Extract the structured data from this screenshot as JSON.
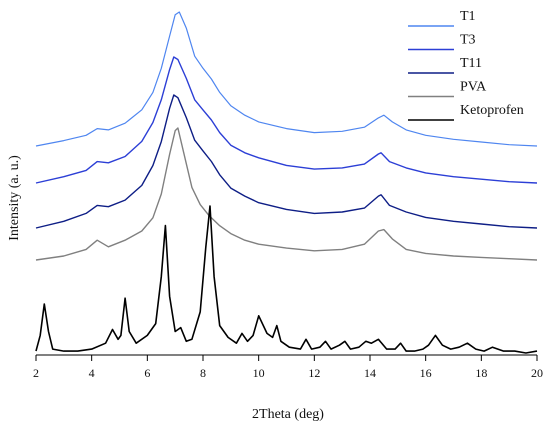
{
  "chart_data": {
    "type": "line",
    "xlabel": "2Theta (deg)",
    "ylabel": "Intensity (a. u.)",
    "xlim": [
      2,
      20
    ],
    "x_ticks": [
      "2",
      "4",
      "6",
      "8",
      "10",
      "12",
      "14",
      "16",
      "18",
      "20"
    ],
    "y_ticks_shown": false,
    "grid": false,
    "legend_position": "top-right",
    "series": [
      {
        "name": "T1",
        "color": "#4f86f0",
        "x": [
          2.0,
          3.0,
          3.8,
          4.2,
          4.6,
          5.2,
          5.8,
          6.2,
          6.5,
          6.8,
          7.0,
          7.15,
          7.4,
          7.7,
          8.0,
          8.3,
          8.6,
          9.0,
          9.5,
          10.0,
          11.0,
          12.0,
          13.0,
          13.8,
          14.3,
          14.5,
          14.8,
          15.3,
          16.0,
          17.0,
          18.0,
          19.0,
          20.0
        ],
        "y": [
          0.0,
          0.04,
          0.08,
          0.13,
          0.12,
          0.17,
          0.27,
          0.4,
          0.58,
          0.82,
          0.98,
          1.0,
          0.88,
          0.67,
          0.58,
          0.5,
          0.4,
          0.3,
          0.23,
          0.18,
          0.13,
          0.1,
          0.11,
          0.14,
          0.21,
          0.23,
          0.18,
          0.12,
          0.08,
          0.05,
          0.03,
          0.01,
          0.0
        ]
      },
      {
        "name": "T3",
        "color": "#2c3fd6",
        "x": [
          2.0,
          3.0,
          3.8,
          4.2,
          4.6,
          5.2,
          5.8,
          6.2,
          6.5,
          6.8,
          6.95,
          7.1,
          7.4,
          7.7,
          8.0,
          8.3,
          8.6,
          9.0,
          9.5,
          10.0,
          11.0,
          12.0,
          13.0,
          13.8,
          14.3,
          14.4,
          14.7,
          15.3,
          16.0,
          17.0,
          18.0,
          19.0,
          20.0
        ],
        "y": [
          0.0,
          0.05,
          0.1,
          0.17,
          0.16,
          0.21,
          0.33,
          0.48,
          0.66,
          0.9,
          1.0,
          0.98,
          0.83,
          0.66,
          0.58,
          0.5,
          0.4,
          0.3,
          0.24,
          0.2,
          0.14,
          0.11,
          0.12,
          0.15,
          0.23,
          0.24,
          0.17,
          0.12,
          0.08,
          0.05,
          0.03,
          0.01,
          0.0
        ]
      },
      {
        "name": "T11",
        "color": "#0e1e86",
        "x": [
          2.0,
          3.0,
          3.8,
          4.2,
          4.6,
          5.2,
          5.8,
          6.2,
          6.5,
          6.8,
          6.95,
          7.1,
          7.4,
          7.7,
          8.0,
          8.3,
          8.6,
          9.0,
          9.5,
          10.0,
          11.0,
          12.0,
          13.0,
          13.8,
          14.3,
          14.4,
          14.7,
          15.3,
          16.0,
          17.0,
          18.0,
          19.0,
          20.0
        ],
        "y": [
          0.0,
          0.05,
          0.11,
          0.17,
          0.16,
          0.21,
          0.32,
          0.47,
          0.65,
          0.9,
          1.0,
          0.98,
          0.83,
          0.66,
          0.58,
          0.5,
          0.4,
          0.3,
          0.24,
          0.19,
          0.14,
          0.11,
          0.12,
          0.15,
          0.24,
          0.25,
          0.17,
          0.12,
          0.08,
          0.05,
          0.03,
          0.01,
          0.0
        ]
      },
      {
        "name": "PVA",
        "color": "#808080",
        "x": [
          2.0,
          3.0,
          3.8,
          4.2,
          4.6,
          5.2,
          5.8,
          6.2,
          6.5,
          6.8,
          7.0,
          7.1,
          7.3,
          7.6,
          7.9,
          8.2,
          8.6,
          9.0,
          9.5,
          10.0,
          11.0,
          12.0,
          13.0,
          13.8,
          14.3,
          14.5,
          14.8,
          15.3,
          16.0,
          17.0,
          18.0,
          19.0,
          20.0
        ],
        "y": [
          0.0,
          0.03,
          0.08,
          0.15,
          0.1,
          0.15,
          0.22,
          0.32,
          0.5,
          0.8,
          0.98,
          1.0,
          0.82,
          0.55,
          0.42,
          0.34,
          0.26,
          0.2,
          0.15,
          0.12,
          0.09,
          0.07,
          0.08,
          0.12,
          0.22,
          0.23,
          0.16,
          0.08,
          0.05,
          0.03,
          0.02,
          0.01,
          0.0
        ]
      },
      {
        "name": "Ketoprofen",
        "color": "#000000",
        "x": [
          2.0,
          2.15,
          2.3,
          2.45,
          2.6,
          3.0,
          3.5,
          4.0,
          4.5,
          4.75,
          4.95,
          5.05,
          5.2,
          5.35,
          5.6,
          6.0,
          6.3,
          6.5,
          6.65,
          6.8,
          7.0,
          7.2,
          7.4,
          7.6,
          7.9,
          8.1,
          8.25,
          8.4,
          8.6,
          8.9,
          9.2,
          9.4,
          9.6,
          9.8,
          10.0,
          10.3,
          10.5,
          10.65,
          10.8,
          11.1,
          11.5,
          11.7,
          11.9,
          12.2,
          12.4,
          12.6,
          12.9,
          13.1,
          13.3,
          13.6,
          13.85,
          14.05,
          14.3,
          14.6,
          14.9,
          15.1,
          15.3,
          15.6,
          15.9,
          16.1,
          16.35,
          16.6,
          16.9,
          17.2,
          17.5,
          17.8,
          18.1,
          18.4,
          18.8,
          19.2,
          19.6,
          20.0
        ],
        "y": [
          0.02,
          0.1,
          0.26,
          0.12,
          0.03,
          0.02,
          0.02,
          0.03,
          0.06,
          0.13,
          0.08,
          0.1,
          0.29,
          0.12,
          0.06,
          0.1,
          0.16,
          0.4,
          0.66,
          0.3,
          0.12,
          0.14,
          0.07,
          0.08,
          0.22,
          0.55,
          0.76,
          0.4,
          0.15,
          0.09,
          0.06,
          0.11,
          0.07,
          0.1,
          0.2,
          0.11,
          0.09,
          0.15,
          0.07,
          0.04,
          0.03,
          0.08,
          0.03,
          0.04,
          0.07,
          0.03,
          0.05,
          0.07,
          0.03,
          0.04,
          0.07,
          0.06,
          0.08,
          0.03,
          0.03,
          0.06,
          0.02,
          0.02,
          0.03,
          0.05,
          0.1,
          0.05,
          0.03,
          0.04,
          0.06,
          0.03,
          0.02,
          0.04,
          0.02,
          0.02,
          0.01,
          0.02
        ]
      }
    ]
  }
}
